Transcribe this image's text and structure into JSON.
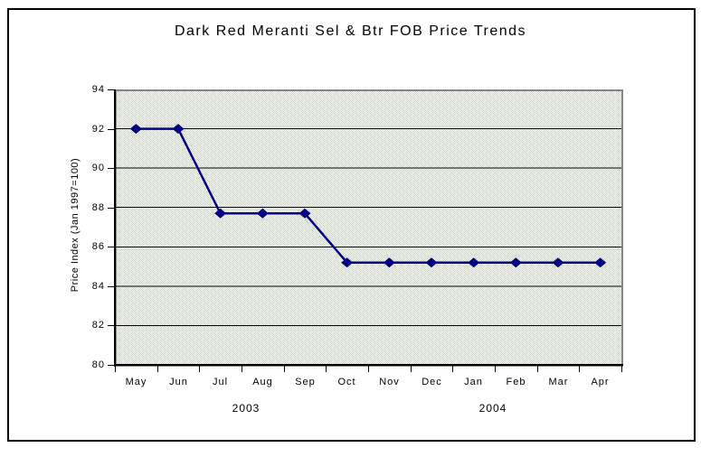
{
  "colors": {
    "series_line": "#000080",
    "marker_fill": "#000080",
    "plot_border": "#858585",
    "gridline": "#000000",
    "axis": "#000000",
    "plot_fill_dither": [
      "#ffffff",
      "#ccd0c8"
    ],
    "background": "#ffffff",
    "text": "#000000"
  },
  "chart_data": {
    "type": "line",
    "title": "Dark Red Meranti Sel & Btr FOB Price Trends",
    "xlabel": "",
    "ylabel": "Price Index (Jan 1997=100)",
    "categories": [
      "May",
      "Jun",
      "Jul",
      "Aug",
      "Sep",
      "Oct",
      "Nov",
      "Dec",
      "Jan",
      "Feb",
      "Mar",
      "Apr"
    ],
    "year_labels": [
      "2003",
      "2004"
    ],
    "series": [
      {
        "name": "Dark Red Meranti Sel & Btr FOB Price Index",
        "values": [
          92,
          92,
          87.7,
          87.7,
          87.7,
          85.2,
          85.2,
          85.2,
          85.2,
          85.2,
          85.2,
          85.2
        ]
      }
    ],
    "ylim": [
      80,
      94
    ],
    "yticks": [
      94,
      92,
      90,
      88,
      86,
      84,
      82,
      80
    ],
    "grid": true,
    "legend": "none",
    "marker": "diamond"
  }
}
